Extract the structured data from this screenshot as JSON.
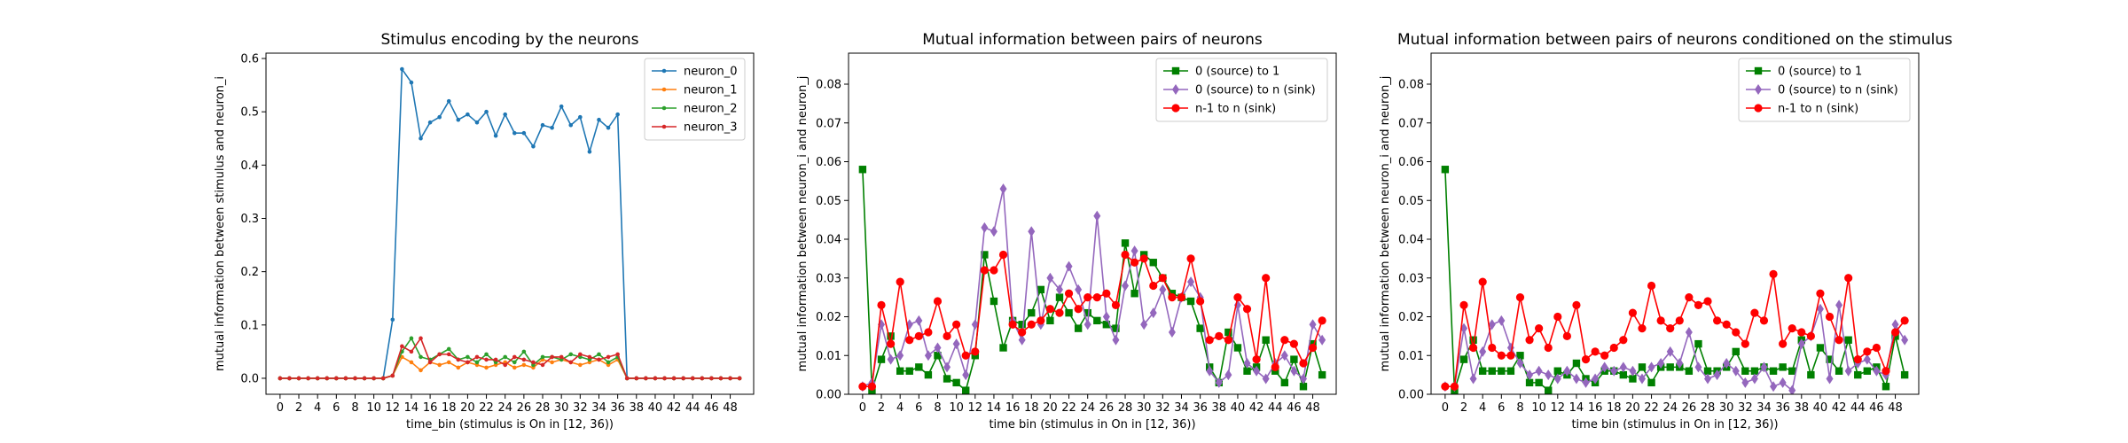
{
  "chart_data": [
    {
      "type": "line",
      "title": "Stimulus encoding by the neurons",
      "xlabel": "time_bin (stimulus is On in [12, 36))",
      "ylabel": "mutual information between stimulus and neuron_i",
      "xlim": [
        -1.5,
        50.5
      ],
      "ylim": [
        -0.03,
        0.61
      ],
      "xticks": [
        0,
        2,
        4,
        6,
        8,
        10,
        12,
        14,
        16,
        18,
        20,
        22,
        24,
        26,
        28,
        30,
        32,
        34,
        36,
        38,
        40,
        42,
        44,
        46,
        48
      ],
      "yticks": [
        0.0,
        0.1,
        0.2,
        0.3,
        0.4,
        0.5,
        0.6
      ],
      "ytick_decimals": 1,
      "legend_position": "top-right",
      "grid": false,
      "x": [
        0,
        1,
        2,
        3,
        4,
        5,
        6,
        7,
        8,
        9,
        10,
        11,
        12,
        13,
        14,
        15,
        16,
        17,
        18,
        19,
        20,
        21,
        22,
        23,
        24,
        25,
        26,
        27,
        28,
        29,
        30,
        31,
        32,
        33,
        34,
        35,
        36,
        37,
        38,
        39,
        40,
        41,
        42,
        43,
        44,
        45,
        46,
        47,
        48,
        49
      ],
      "series": [
        {
          "name": "neuron_0",
          "color": "#1f77b4",
          "marker": "dot",
          "values": [
            0,
            0,
            0,
            0,
            0,
            0,
            0,
            0,
            0,
            0,
            0,
            0,
            0.11,
            0.58,
            0.555,
            0.45,
            0.48,
            0.49,
            0.52,
            0.485,
            0.495,
            0.48,
            0.5,
            0.455,
            0.495,
            0.46,
            0.46,
            0.435,
            0.475,
            0.47,
            0.51,
            0.475,
            0.49,
            0.425,
            0.485,
            0.47,
            0.495,
            0,
            0,
            0,
            0,
            0,
            0,
            0,
            0,
            0,
            0,
            0,
            0,
            0
          ]
        },
        {
          "name": "neuron_1",
          "color": "#ff7f0e",
          "marker": "dot",
          "values": [
            0,
            0,
            0,
            0,
            0,
            0,
            0,
            0,
            0,
            0,
            0,
            0,
            0.005,
            0.04,
            0.03,
            0.015,
            0.03,
            0.025,
            0.03,
            0.02,
            0.03,
            0.025,
            0.02,
            0.025,
            0.03,
            0.02,
            0.025,
            0.02,
            0.035,
            0.03,
            0.035,
            0.03,
            0.025,
            0.03,
            0.035,
            0.025,
            0.035,
            0,
            0,
            0,
            0,
            0,
            0,
            0,
            0,
            0,
            0,
            0,
            0,
            0
          ]
        },
        {
          "name": "neuron_2",
          "color": "#2ca02c",
          "marker": "dot",
          "values": [
            0,
            0,
            0,
            0,
            0,
            0,
            0,
            0,
            0,
            0,
            0,
            0,
            0.005,
            0.05,
            0.075,
            0.04,
            0.035,
            0.045,
            0.055,
            0.035,
            0.04,
            0.03,
            0.045,
            0.03,
            0.04,
            0.03,
            0.05,
            0.025,
            0.04,
            0.04,
            0.035,
            0.045,
            0.04,
            0.035,
            0.045,
            0.03,
            0.04,
            0,
            0,
            0,
            0,
            0,
            0,
            0,
            0,
            0,
            0,
            0,
            0,
            0
          ]
        },
        {
          "name": "neuron_3",
          "color": "#d62728",
          "marker": "dot",
          "values": [
            0,
            0,
            0,
            0,
            0,
            0,
            0,
            0,
            0,
            0,
            0,
            0,
            0.005,
            0.06,
            0.05,
            0.075,
            0.03,
            0.045,
            0.045,
            0.035,
            0.03,
            0.04,
            0.035,
            0.035,
            0.025,
            0.04,
            0.035,
            0.03,
            0.025,
            0.04,
            0.04,
            0.03,
            0.045,
            0.04,
            0.035,
            0.04,
            0.045,
            0,
            0,
            0,
            0,
            0,
            0,
            0,
            0,
            0,
            0,
            0,
            0,
            0
          ]
        }
      ]
    },
    {
      "type": "line",
      "title": "Mutual information between pairs of neurons",
      "xlabel": "time bin (stimulus in On in [12, 36))",
      "ylabel": "mutual information between neuron_i and neuron_j",
      "xlim": [
        -1.5,
        50.5
      ],
      "ylim": [
        0,
        0.088
      ],
      "xticks": [
        0,
        2,
        4,
        6,
        8,
        10,
        12,
        14,
        16,
        18,
        20,
        22,
        24,
        26,
        28,
        30,
        32,
        34,
        36,
        38,
        40,
        42,
        44,
        46,
        48
      ],
      "yticks": [
        0.0,
        0.01,
        0.02,
        0.03,
        0.04,
        0.05,
        0.06,
        0.07,
        0.08
      ],
      "ytick_decimals": 2,
      "legend_position": "top-right",
      "grid": false,
      "x": [
        0,
        1,
        2,
        3,
        4,
        5,
        6,
        7,
        8,
        9,
        10,
        11,
        12,
        13,
        14,
        15,
        16,
        17,
        18,
        19,
        20,
        21,
        22,
        23,
        24,
        25,
        26,
        27,
        28,
        29,
        30,
        31,
        32,
        33,
        34,
        35,
        36,
        37,
        38,
        39,
        40,
        41,
        42,
        43,
        44,
        45,
        46,
        47,
        48,
        49
      ],
      "series": [
        {
          "name": "0 (source) to 1",
          "color": "#008000",
          "marker": "square",
          "values": [
            0.058,
            0.001,
            0.009,
            0.015,
            0.006,
            0.006,
            0.007,
            0.005,
            0.01,
            0.004,
            0.003,
            0.001,
            0.01,
            0.036,
            0.024,
            0.012,
            0.019,
            0.018,
            0.021,
            0.027,
            0.019,
            0.025,
            0.021,
            0.017,
            0.021,
            0.019,
            0.018,
            0.017,
            0.039,
            0.026,
            0.036,
            0.034,
            0.03,
            0.026,
            0.025,
            0.024,
            0.017,
            0.007,
            0.003,
            0.016,
            0.012,
            0.006,
            0.007,
            0.014,
            0.006,
            0.003,
            0.009,
            0.002,
            0.013,
            0.005
          ]
        },
        {
          "name": "0 (source) to n (sink)",
          "color": "#9467bd",
          "marker": "diamond",
          "values": [
            0.002,
            0.003,
            0.018,
            0.009,
            0.01,
            0.018,
            0.019,
            0.01,
            0.012,
            0.007,
            0.013,
            0.005,
            0.018,
            0.043,
            0.042,
            0.053,
            0.019,
            0.014,
            0.042,
            0.018,
            0.03,
            0.027,
            0.033,
            0.027,
            0.018,
            0.046,
            0.02,
            0.014,
            0.028,
            0.037,
            0.018,
            0.021,
            0.027,
            0.016,
            0.025,
            0.029,
            0.025,
            0.006,
            0.003,
            0.005,
            0.023,
            0.008,
            0.006,
            0.004,
            0.008,
            0.01,
            0.006,
            0.004,
            0.018,
            0.014
          ]
        },
        {
          "name": "n-1 to n (sink)",
          "color": "#ff0000",
          "marker": "circle",
          "values": [
            0.002,
            0.002,
            0.023,
            0.013,
            0.029,
            0.014,
            0.015,
            0.016,
            0.024,
            0.015,
            0.018,
            0.01,
            0.011,
            0.032,
            0.032,
            0.036,
            0.018,
            0.016,
            0.018,
            0.019,
            0.022,
            0.021,
            0.026,
            0.022,
            0.025,
            0.025,
            0.026,
            0.023,
            0.036,
            0.034,
            0.035,
            0.028,
            0.03,
            0.025,
            0.025,
            0.035,
            0.024,
            0.014,
            0.015,
            0.014,
            0.025,
            0.022,
            0.009,
            0.03,
            0.007,
            0.014,
            0.013,
            0.008,
            0.012,
            0.019
          ]
        }
      ]
    },
    {
      "type": "line",
      "title": "Mutual information between pairs of neurons conditioned on the stimulus",
      "xlabel": "time bin (stimulus in On in [12, 36))",
      "ylabel": "mutual information between neuron_i and neuron_j",
      "xlim": [
        -1.5,
        50.5
      ],
      "ylim": [
        0,
        0.088
      ],
      "xticks": [
        0,
        2,
        4,
        6,
        8,
        10,
        12,
        14,
        16,
        18,
        20,
        22,
        24,
        26,
        28,
        30,
        32,
        34,
        36,
        38,
        40,
        42,
        44,
        46,
        48
      ],
      "yticks": [
        0.0,
        0.01,
        0.02,
        0.03,
        0.04,
        0.05,
        0.06,
        0.07,
        0.08
      ],
      "ytick_decimals": 2,
      "legend_position": "top-right",
      "grid": false,
      "x": [
        0,
        1,
        2,
        3,
        4,
        5,
        6,
        7,
        8,
        9,
        10,
        11,
        12,
        13,
        14,
        15,
        16,
        17,
        18,
        19,
        20,
        21,
        22,
        23,
        24,
        25,
        26,
        27,
        28,
        29,
        30,
        31,
        32,
        33,
        34,
        35,
        36,
        37,
        38,
        39,
        40,
        41,
        42,
        43,
        44,
        45,
        46,
        47,
        48,
        49
      ],
      "series": [
        {
          "name": "0 (source) to 1",
          "color": "#008000",
          "marker": "square",
          "values": [
            0.058,
            0.001,
            0.009,
            0.014,
            0.006,
            0.006,
            0.006,
            0.006,
            0.01,
            0.003,
            0.003,
            0.001,
            0.006,
            0.005,
            0.008,
            0.004,
            0.003,
            0.006,
            0.006,
            0.005,
            0.004,
            0.007,
            0.003,
            0.007,
            0.007,
            0.007,
            0.006,
            0.013,
            0.006,
            0.006,
            0.007,
            0.011,
            0.006,
            0.006,
            0.007,
            0.006,
            0.007,
            0.006,
            0.014,
            0.005,
            0.012,
            0.009,
            0.006,
            0.014,
            0.005,
            0.006,
            0.007,
            0.002,
            0.015,
            0.005
          ]
        },
        {
          "name": "0 (source) to n (sink)",
          "color": "#9467bd",
          "marker": "diamond",
          "values": [
            0.002,
            0.002,
            0.017,
            0.004,
            0.011,
            0.018,
            0.019,
            0.012,
            0.008,
            0.005,
            0.006,
            0.005,
            0.004,
            0.006,
            0.004,
            0.003,
            0.004,
            0.007,
            0.006,
            0.007,
            0.006,
            0.004,
            0.007,
            0.008,
            0.011,
            0.008,
            0.016,
            0.007,
            0.004,
            0.005,
            0.008,
            0.006,
            0.003,
            0.004,
            0.007,
            0.002,
            0.003,
            0.001,
            0.013,
            0.015,
            0.022,
            0.004,
            0.023,
            0.006,
            0.008,
            0.009,
            0.006,
            0.005,
            0.018,
            0.014
          ]
        },
        {
          "name": "n-1 to n (sink)",
          "color": "#ff0000",
          "marker": "circle",
          "values": [
            0.002,
            0.002,
            0.023,
            0.012,
            0.029,
            0.012,
            0.01,
            0.01,
            0.025,
            0.014,
            0.017,
            0.012,
            0.02,
            0.015,
            0.023,
            0.009,
            0.011,
            0.01,
            0.012,
            0.014,
            0.021,
            0.017,
            0.028,
            0.019,
            0.017,
            0.019,
            0.025,
            0.023,
            0.024,
            0.019,
            0.018,
            0.016,
            0.013,
            0.021,
            0.019,
            0.031,
            0.013,
            0.017,
            0.016,
            0.015,
            0.026,
            0.02,
            0.014,
            0.03,
            0.009,
            0.011,
            0.012,
            0.006,
            0.016,
            0.019
          ]
        }
      ]
    }
  ]
}
